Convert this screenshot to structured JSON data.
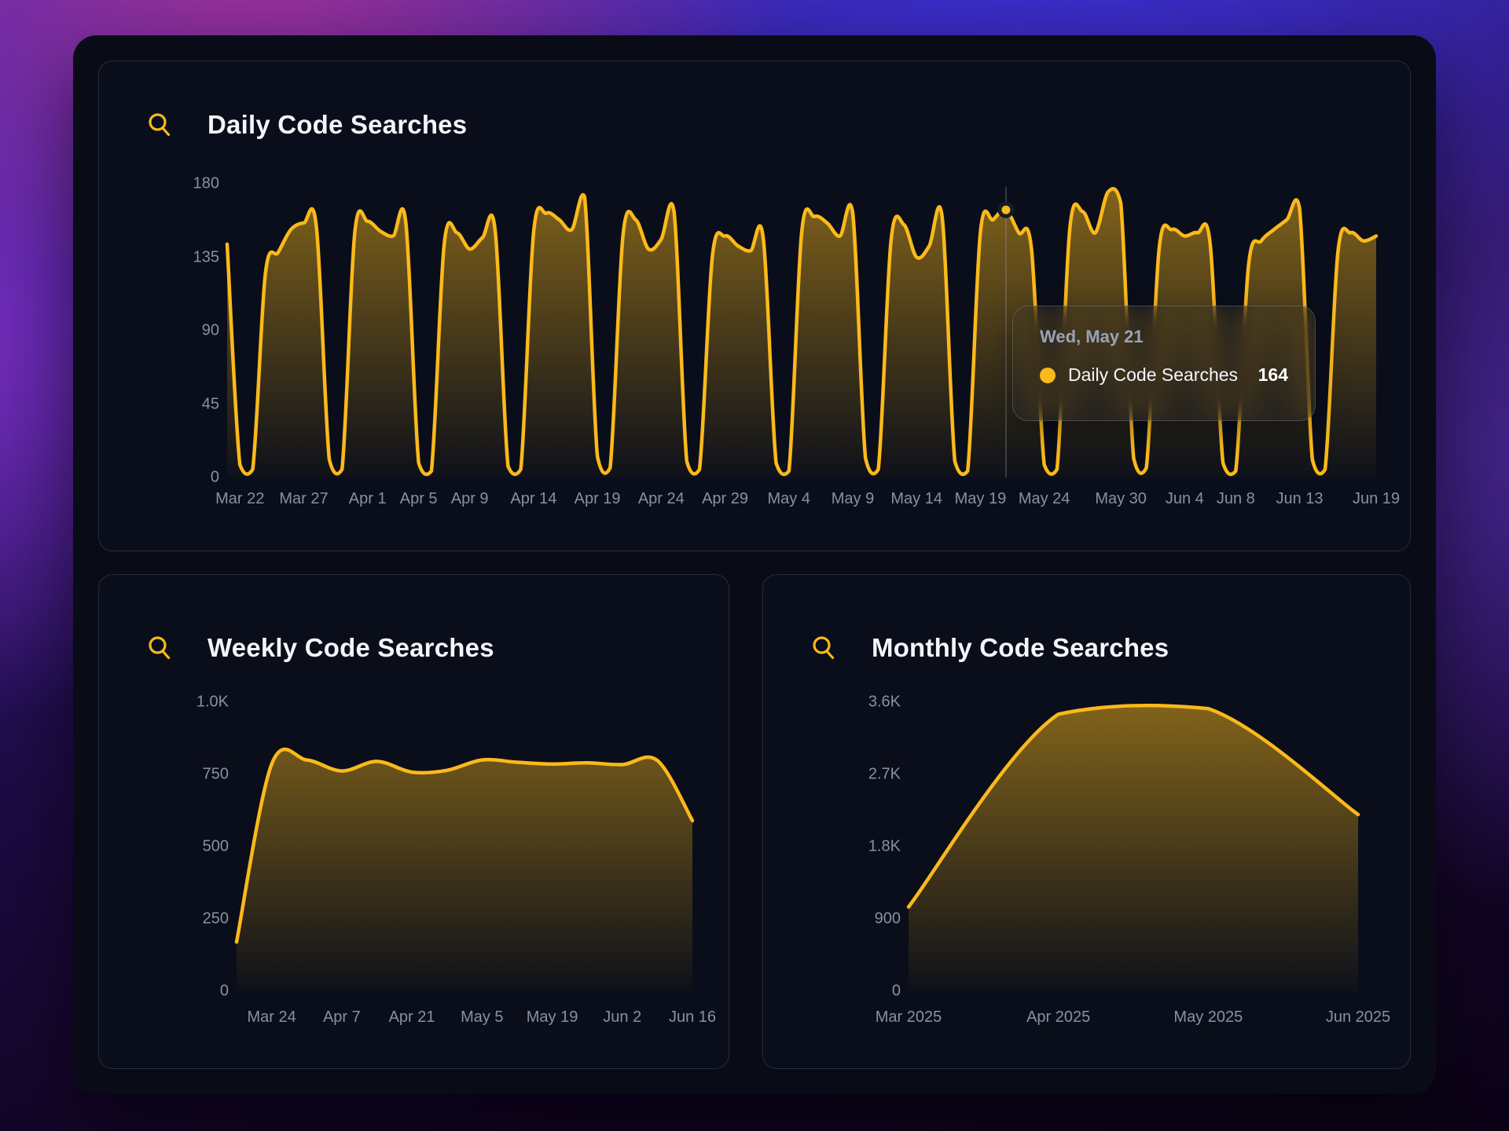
{
  "colors": {
    "accent": "#fbb91a",
    "panel_bg": "#090c16",
    "card_bg": "#0a0e1a",
    "card_border": "rgba(94,112,142,0.32)",
    "axis_text": "#8791a4",
    "title_text": "#f3f5f9",
    "tooltip_date_text": "#98a3b8"
  },
  "chart_data": [
    {
      "id": "daily",
      "type": "area",
      "title": "Daily Code Searches",
      "xlabel": "",
      "ylabel": "",
      "ylim": [
        0,
        180
      ],
      "y_max": 180,
      "grid": false,
      "y_ticks": [
        {
          "label": "0",
          "v": 0
        },
        {
          "label": "45",
          "v": 45
        },
        {
          "label": "90",
          "v": 90
        },
        {
          "label": "135",
          "v": 135
        },
        {
          "label": "180",
          "v": 180
        }
      ],
      "x_ticks": [
        {
          "label": "Mar 22",
          "day_offset": 1
        },
        {
          "label": "Mar 27",
          "day_offset": 6
        },
        {
          "label": "Apr 1",
          "day_offset": 11
        },
        {
          "label": "Apr 5",
          "day_offset": 15
        },
        {
          "label": "Apr 9",
          "day_offset": 19
        },
        {
          "label": "Apr 14",
          "day_offset": 24
        },
        {
          "label": "Apr 19",
          "day_offset": 29
        },
        {
          "label": "Apr 24",
          "day_offset": 34
        },
        {
          "label": "Apr 29",
          "day_offset": 39
        },
        {
          "label": "May 4",
          "day_offset": 44
        },
        {
          "label": "May 9",
          "day_offset": 49
        },
        {
          "label": "May 14",
          "day_offset": 54
        },
        {
          "label": "May 19",
          "day_offset": 59
        },
        {
          "label": "May 24",
          "day_offset": 64
        },
        {
          "label": "May 30",
          "day_offset": 70
        },
        {
          "label": "Jun 4",
          "day_offset": 75
        },
        {
          "label": "Jun 8",
          "day_offset": 79
        },
        {
          "label": "Jun 13",
          "day_offset": 84
        },
        {
          "label": "Jun 19",
          "day_offset": 90
        }
      ],
      "values": [
        143,
        8,
        5,
        125,
        138,
        152,
        156,
        153,
        11,
        5,
        150,
        157,
        151,
        148,
        156,
        9,
        4,
        143,
        150,
        140,
        147,
        151,
        7,
        5,
        150,
        162,
        158,
        152,
        172,
        13,
        6,
        148,
        158,
        140,
        146,
        163,
        10,
        5,
        135,
        148,
        142,
        139,
        146,
        9,
        4,
        150,
        160,
        156,
        148,
        162,
        12,
        5,
        145,
        155,
        135,
        142,
        160,
        10,
        4,
        150,
        158,
        164,
        150,
        140,
        8,
        5,
        152,
        163,
        150,
        175,
        168,
        12,
        6,
        140,
        152,
        148,
        150,
        143,
        9,
        4,
        130,
        145,
        152,
        158,
        165,
        11,
        5,
        138,
        150,
        145,
        148
      ],
      "cursor": {
        "index": 61,
        "value": 164,
        "date": "Wed, May 21",
        "series": "Daily Code Searches",
        "display_value": "164"
      }
    },
    {
      "id": "weekly",
      "type": "area",
      "title": "Weekly Code Searches",
      "xlabel": "",
      "ylabel": "",
      "ylim": [
        0,
        1000
      ],
      "y_max": 1000,
      "grid": false,
      "y_ticks": [
        {
          "label": "0",
          "v": 0
        },
        {
          "label": "250",
          "v": 250
        },
        {
          "label": "500",
          "v": 500
        },
        {
          "label": "750",
          "v": 750
        },
        {
          "label": "1.0K",
          "v": 1000
        }
      ],
      "x_ticks": [
        {
          "label": "Mar 24",
          "day_offset": 1
        },
        {
          "label": "Apr 7",
          "day_offset": 3
        },
        {
          "label": "Apr 21",
          "day_offset": 5
        },
        {
          "label": "May 5",
          "day_offset": 7
        },
        {
          "label": "May 19",
          "day_offset": 9
        },
        {
          "label": "Jun 2",
          "day_offset": 11
        },
        {
          "label": "Jun 16",
          "day_offset": 13
        }
      ],
      "values": [
        170,
        785,
        800,
        762,
        795,
        758,
        764,
        800,
        792,
        786,
        790,
        784,
        798,
        590
      ]
    },
    {
      "id": "monthly",
      "type": "area",
      "title": "Monthly Code Searches",
      "xlabel": "",
      "ylabel": "",
      "ylim": [
        0,
        3600
      ],
      "y_max": 3600,
      "grid": false,
      "y_ticks": [
        {
          "label": "0",
          "v": 0
        },
        {
          "label": "900",
          "v": 900
        },
        {
          "label": "1.8K",
          "v": 1800
        },
        {
          "label": "2.7K",
          "v": 2700
        },
        {
          "label": "3.6K",
          "v": 3600
        }
      ],
      "x_ticks": [
        {
          "label": "Mar 2025",
          "day_offset": 0
        },
        {
          "label": "Apr 2025",
          "day_offset": 1
        },
        {
          "label": "May 2025",
          "day_offset": 2
        },
        {
          "label": "Jun 2025",
          "day_offset": 3
        }
      ],
      "values": [
        1050,
        3450,
        3520,
        2200
      ]
    }
  ]
}
